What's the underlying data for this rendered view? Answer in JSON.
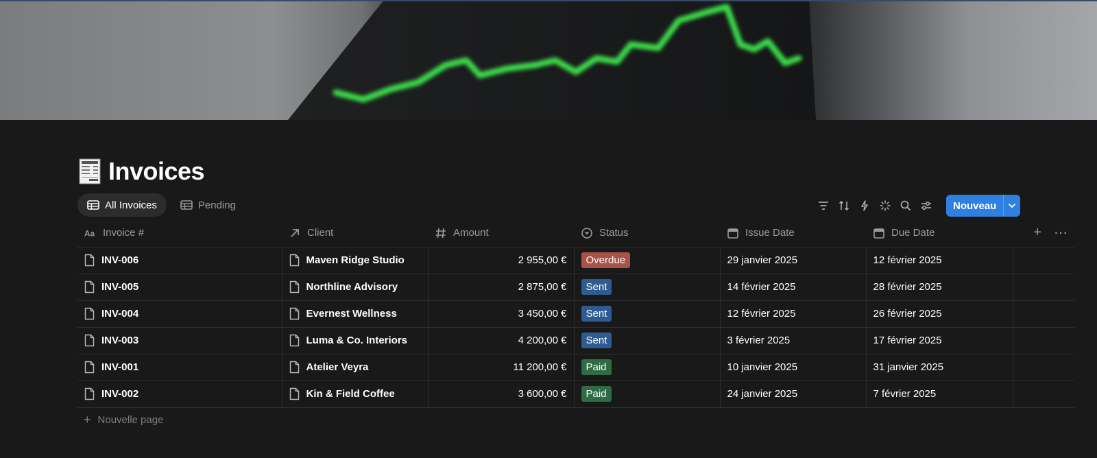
{
  "page": {
    "title": "Invoices",
    "title_icon": "receipt-icon",
    "cover_image": "stock-chart-cover-image"
  },
  "views": [
    {
      "label": "All Invoices",
      "icon": "table-icon",
      "active": true
    },
    {
      "label": "Pending",
      "icon": "table-icon",
      "active": false
    }
  ],
  "toolbar": {
    "tools": [
      "filter-icon",
      "sort-icon",
      "automation-icon",
      "ai-sparkle-icon",
      "search-icon",
      "settings-icon"
    ],
    "new_label": "Nouveau"
  },
  "columns": [
    {
      "label": "Invoice #",
      "icon": "text-icon"
    },
    {
      "label": "Client",
      "icon": "relation-arrow-icon"
    },
    {
      "label": "Amount",
      "icon": "number-icon"
    },
    {
      "label": "Status",
      "icon": "status-icon"
    },
    {
      "label": "Issue Date",
      "icon": "calendar-icon"
    },
    {
      "label": "Due Date",
      "icon": "calendar-icon"
    }
  ],
  "rows": [
    {
      "invoice": "INV-006",
      "client": "Maven Ridge Studio",
      "amount": "2 955,00 €",
      "status": "Overdue",
      "issue_date": "29 janvier 2025",
      "due_date": "12 février 2025"
    },
    {
      "invoice": "INV-005",
      "client": "Northline Advisory",
      "amount": "2 875,00 €",
      "status": "Sent",
      "issue_date": "14 février 2025",
      "due_date": "28 février 2025"
    },
    {
      "invoice": "INV-004",
      "client": "Evernest Wellness",
      "amount": "3 450,00 €",
      "status": "Sent",
      "issue_date": "12 février 2025",
      "due_date": "26 février 2025"
    },
    {
      "invoice": "INV-003",
      "client": "Luma & Co. Interiors",
      "amount": "4 200,00 €",
      "status": "Sent",
      "issue_date": "3 février 2025",
      "due_date": "17 février 2025"
    },
    {
      "invoice": "INV-001",
      "client": "Atelier Veyra",
      "amount": "11 200,00 €",
      "status": "Paid",
      "issue_date": "10 janvier 2025",
      "due_date": "31 janvier 2025"
    },
    {
      "invoice": "INV-002",
      "client": "Kin & Field Coffee",
      "amount": "3 600,00 €",
      "status": "Paid",
      "issue_date": "24 janvier 2025",
      "due_date": "7 février 2025"
    }
  ],
  "status_colors": {
    "Overdue": "#a8524a",
    "Sent": "#2e5b91",
    "Paid": "#2f6b45"
  },
  "add_row_label": "Nouvelle page"
}
